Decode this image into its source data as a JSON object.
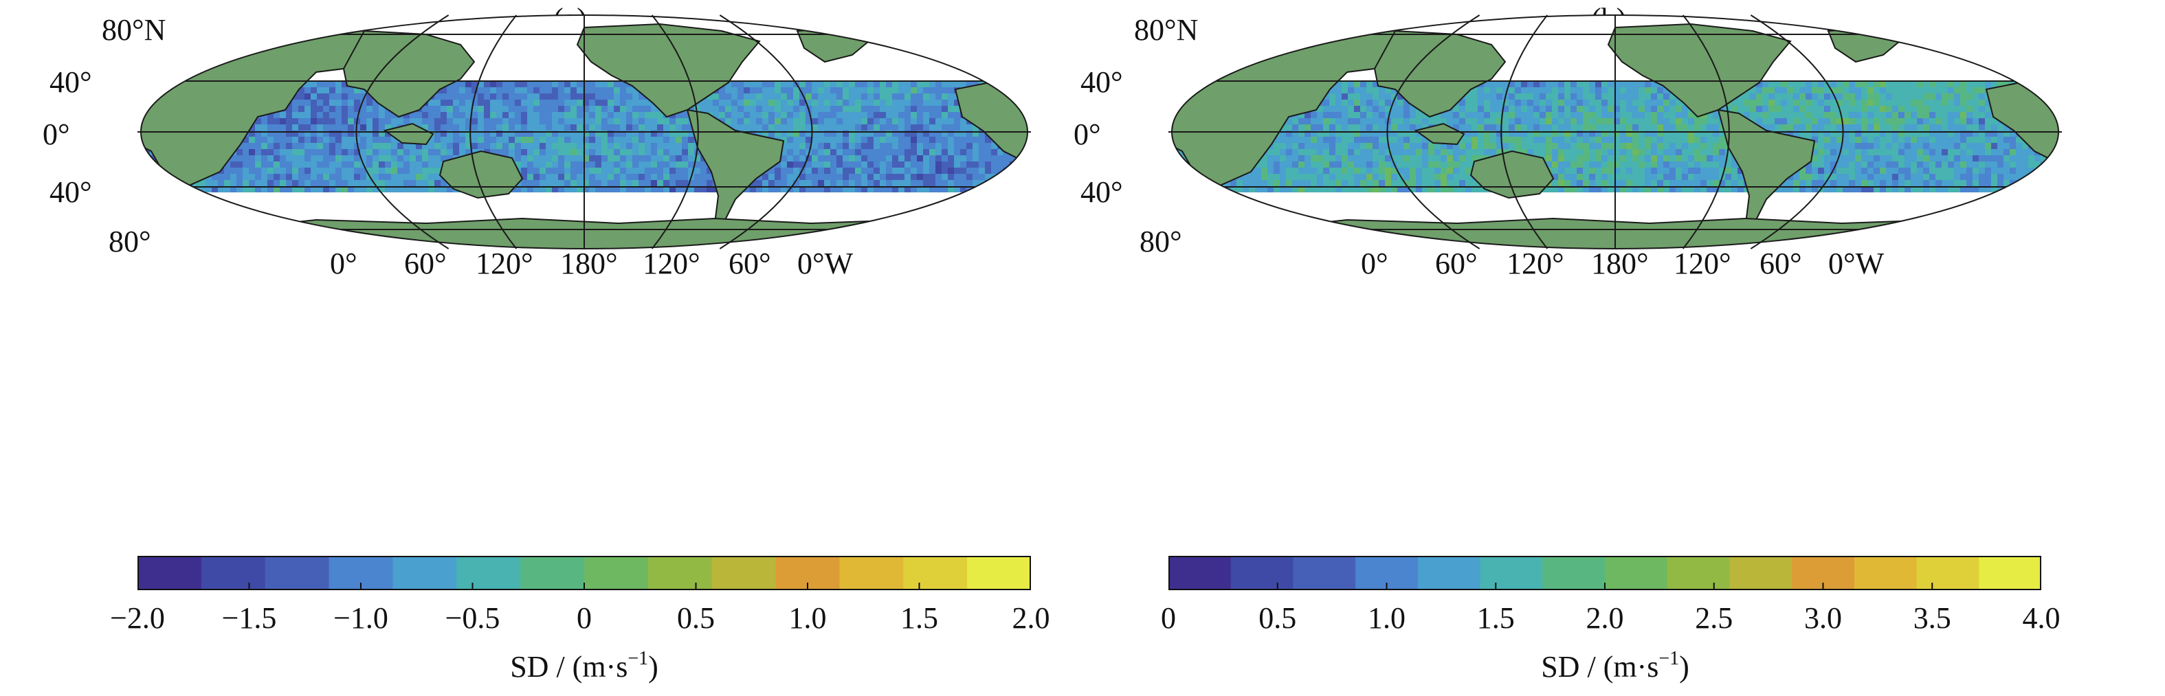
{
  "colors": {
    "land": "#6f9f6a",
    "land_stroke": "#1a1a1a",
    "polar_white": "#ffffff",
    "grid": "#1a1a1a",
    "colorscale": [
      "#3e2f8f",
      "#3f4aa6",
      "#4660b8",
      "#4b84cf",
      "#4aa0cf",
      "#48b3b0",
      "#58b780",
      "#6db860",
      "#92b944",
      "#b9b63a",
      "#dc9c36",
      "#e0b835",
      "#dfd03a",
      "#e7ec45"
    ]
  },
  "panels": [
    {
      "id": "a",
      "title": "(a)",
      "lat_labels": [
        "80°N",
        "40°",
        "0°",
        "40°",
        "80°"
      ],
      "lon_labels": [
        "0°",
        "60°",
        "120°",
        "180°",
        "120°",
        "60°",
        "0°W"
      ],
      "colorbar": {
        "ticks": [
          "−2.0",
          "−1.5",
          "−1.0",
          "−0.5",
          "0",
          "0.5",
          "1.0",
          "1.5",
          "2.0"
        ],
        "range": [
          -2.0,
          2.0
        ],
        "label": "SD / (m·s",
        "label_sup": "−1",
        "label_end": ")"
      },
      "field_mean_level": 0.28
    },
    {
      "id": "b",
      "title": "(b)",
      "lat_labels": [
        "80°N",
        "40°",
        "0°",
        "40°",
        "80°"
      ],
      "lon_labels": [
        "0°",
        "60°",
        "120°",
        "180°",
        "120°",
        "60°",
        "0°W"
      ],
      "colorbar": {
        "ticks": [
          "0",
          "0.5",
          "1.0",
          "1.5",
          "2.0",
          "2.5",
          "3.0",
          "3.5",
          "4.0"
        ],
        "range": [
          0,
          4.0
        ],
        "label": "SD / (m·s",
        "label_sup": "−1",
        "label_end": ")"
      },
      "field_mean_level": 0.36
    }
  ]
}
